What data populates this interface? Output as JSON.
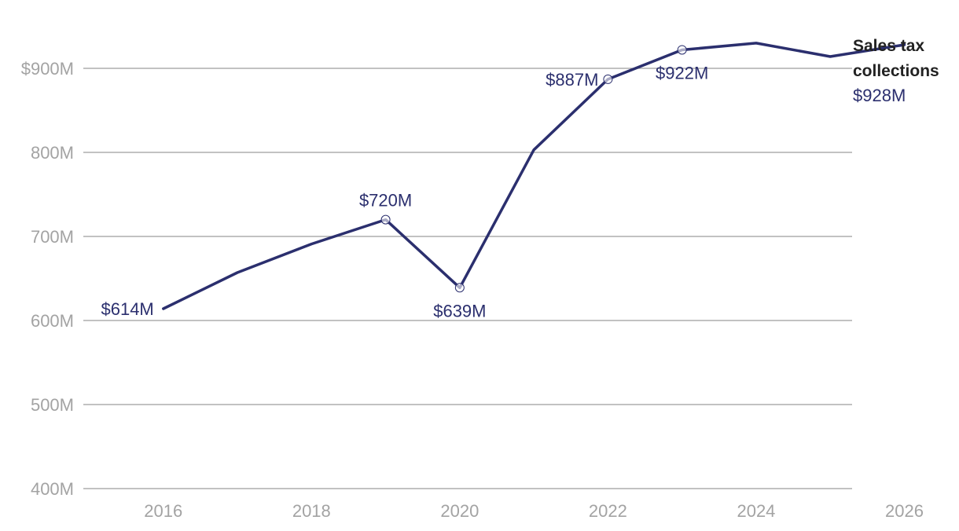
{
  "chart_data": {
    "type": "line",
    "title": "",
    "xlabel": "",
    "ylabel": "",
    "xlim": [
      2015,
      2026
    ],
    "ylim": [
      400,
      950
    ],
    "x_ticks": [
      {
        "value": 2016,
        "label": "2016"
      },
      {
        "value": 2018,
        "label": "2018"
      },
      {
        "value": 2020,
        "label": "2020"
      },
      {
        "value": 2022,
        "label": "2022"
      },
      {
        "value": 2024,
        "label": "2024"
      },
      {
        "value": 2026,
        "label": "2026"
      }
    ],
    "y_ticks": [
      {
        "value": 400,
        "label": "400M"
      },
      {
        "value": 500,
        "label": "500M"
      },
      {
        "value": 600,
        "label": "600M"
      },
      {
        "value": 700,
        "label": "700M"
      },
      {
        "value": 800,
        "label": "800M"
      },
      {
        "value": 900,
        "label": "$900M"
      }
    ],
    "grid": true,
    "series": [
      {
        "name_lines": [
          "Sales tax",
          "collections"
        ],
        "color": "#2b2f6e",
        "end_label": "$928M",
        "x": [
          2016,
          2017,
          2018,
          2019,
          2020,
          2021,
          2022,
          2023,
          2024,
          2025,
          2026
        ],
        "values": [
          614,
          657,
          691,
          720,
          639,
          803,
          887,
          922,
          930,
          914,
          928
        ]
      }
    ],
    "annotations": [
      {
        "x": 2016,
        "y": 614,
        "text": "$614M",
        "marker": false,
        "placement": "left"
      },
      {
        "x": 2019,
        "y": 720,
        "text": "$720M",
        "marker": true,
        "placement": "above"
      },
      {
        "x": 2020,
        "y": 639,
        "text": "$639M",
        "marker": true,
        "placement": "below"
      },
      {
        "x": 2022,
        "y": 887,
        "text": "$887M",
        "marker": true,
        "placement": "left"
      },
      {
        "x": 2023,
        "y": 922,
        "text": "$922M",
        "marker": true,
        "placement": "below"
      }
    ]
  }
}
